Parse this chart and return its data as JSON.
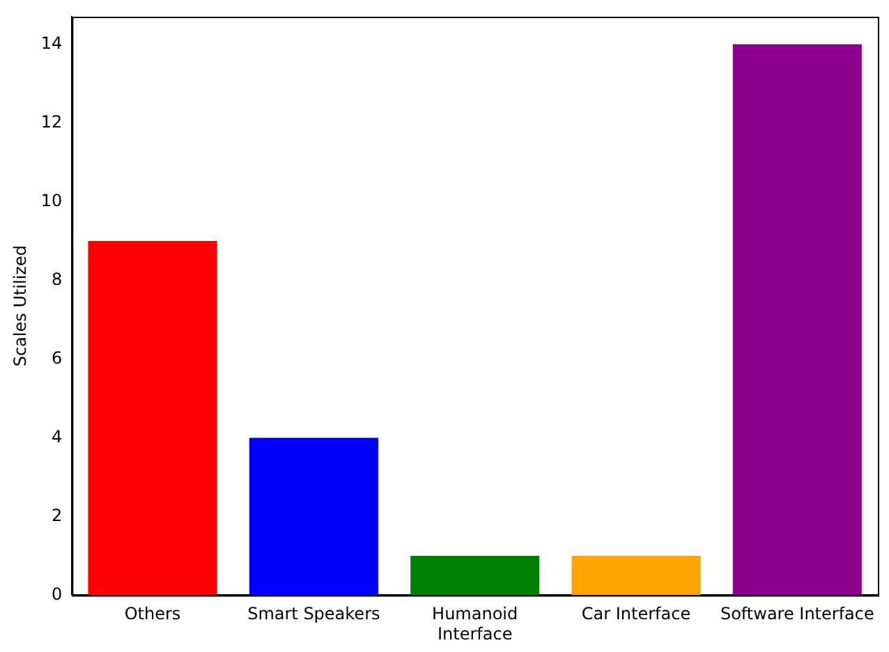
{
  "chart_data": {
    "type": "bar",
    "ylabel": "Scales Utilized",
    "categories": [
      "Others",
      "Smart Speakers",
      "Humanoid\nInterface",
      "Car Interface",
      "Software Interface"
    ],
    "values": [
      9,
      4,
      1,
      1,
      14
    ],
    "colors": [
      "#ff0000",
      "#0000ff",
      "#008000",
      "#ffa500",
      "#8b008b"
    ],
    "ylim": [
      0,
      14.7
    ],
    "yticks": [
      0,
      2,
      4,
      6,
      8,
      10,
      12,
      14
    ],
    "grid": false,
    "legend": false
  }
}
